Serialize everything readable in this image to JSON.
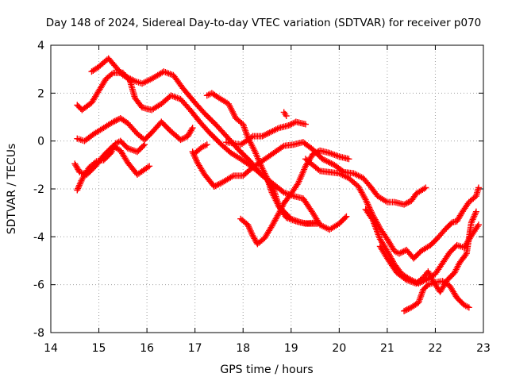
{
  "chart_data": {
    "type": "scatter",
    "title": "Day 148 of 2024, Sidereal Day-to-day VTEC variation (SDTVAR) for receiver p070",
    "xlabel": "GPS time / hours",
    "ylabel": "SDTVAR / TECUs",
    "xlim": [
      14,
      23
    ],
    "ylim": [
      -8,
      4
    ],
    "xticks": [
      "14",
      "15",
      "16",
      "17",
      "18",
      "19",
      "20",
      "21",
      "22",
      "23"
    ],
    "yticks": [
      "-8",
      "-6",
      "-4",
      "-2",
      "0",
      "2",
      "4"
    ],
    "grid": true,
    "marker": "plus",
    "color": "#ff0000",
    "series": [
      {
        "name": "track-1",
        "points": [
          [
            14.85,
            2.9
          ],
          [
            15.0,
            3.1
          ],
          [
            15.2,
            3.45
          ],
          [
            15.35,
            3.1
          ],
          [
            15.5,
            2.75
          ],
          [
            15.75,
            2.5
          ],
          [
            15.9,
            2.4
          ],
          [
            16.1,
            2.6
          ],
          [
            16.35,
            2.9
          ],
          [
            16.55,
            2.75
          ],
          [
            16.75,
            2.2
          ],
          [
            17.0,
            1.6
          ],
          [
            17.2,
            1.15
          ],
          [
            17.45,
            0.65
          ],
          [
            17.7,
            0.1
          ],
          [
            17.9,
            -0.35
          ],
          [
            18.15,
            -0.85
          ],
          [
            18.35,
            -1.35
          ],
          [
            18.6,
            -1.75
          ],
          [
            18.85,
            -2.15
          ],
          [
            19.05,
            -2.3
          ],
          [
            19.25,
            -2.4
          ],
          [
            19.45,
            -3.0
          ],
          [
            19.6,
            -3.5
          ],
          [
            19.8,
            -3.7
          ],
          [
            20.0,
            -3.45
          ],
          [
            20.15,
            -3.15
          ]
        ]
      },
      {
        "name": "track-2",
        "points": [
          [
            14.55,
            1.5
          ],
          [
            14.65,
            1.3
          ],
          [
            14.85,
            1.6
          ],
          [
            15.0,
            2.1
          ],
          [
            15.15,
            2.6
          ],
          [
            15.3,
            2.85
          ],
          [
            15.5,
            2.85
          ],
          [
            15.65,
            2.5
          ],
          [
            15.75,
            1.8
          ],
          [
            15.9,
            1.4
          ],
          [
            16.1,
            1.3
          ],
          [
            16.3,
            1.55
          ],
          [
            16.5,
            1.9
          ],
          [
            16.7,
            1.75
          ],
          [
            16.9,
            1.3
          ],
          [
            17.1,
            0.8
          ],
          [
            17.3,
            0.35
          ],
          [
            17.55,
            -0.15
          ],
          [
            17.75,
            -0.5
          ],
          [
            17.95,
            -0.75
          ],
          [
            18.1,
            -0.95
          ],
          [
            18.3,
            -1.25
          ],
          [
            18.5,
            -1.6
          ],
          [
            18.65,
            -2.1
          ],
          [
            18.75,
            -2.75
          ],
          [
            18.9,
            -3.2
          ],
          [
            19.1,
            -3.35
          ],
          [
            19.3,
            -3.45
          ],
          [
            19.55,
            -3.4
          ]
        ]
      },
      {
        "name": "track-3",
        "points": [
          [
            14.55,
            0.1
          ],
          [
            14.7,
            0.0
          ],
          [
            14.9,
            0.3
          ],
          [
            15.1,
            0.55
          ],
          [
            15.3,
            0.8
          ],
          [
            15.45,
            0.95
          ],
          [
            15.6,
            0.75
          ],
          [
            15.8,
            0.3
          ],
          [
            15.95,
            0.05
          ],
          [
            16.1,
            0.35
          ],
          [
            16.3,
            0.8
          ],
          [
            16.5,
            0.4
          ],
          [
            16.7,
            0.05
          ],
          [
            16.85,
            0.2
          ],
          [
            16.95,
            0.55
          ]
        ]
      },
      {
        "name": "track-4",
        "points": [
          [
            14.5,
            -0.95
          ],
          [
            14.6,
            -1.3
          ],
          [
            14.75,
            -1.4
          ],
          [
            14.95,
            -1.0
          ],
          [
            15.1,
            -0.6
          ],
          [
            15.3,
            -0.2
          ],
          [
            15.45,
            -0.4
          ],
          [
            15.6,
            -0.9
          ],
          [
            15.8,
            -1.4
          ],
          [
            16.05,
            -1.05
          ]
        ]
      },
      {
        "name": "track-5",
        "points": [
          [
            14.55,
            -2.05
          ],
          [
            14.65,
            -1.6
          ],
          [
            14.8,
            -1.1
          ],
          [
            14.95,
            -0.85
          ],
          [
            15.1,
            -0.8
          ],
          [
            15.25,
            -0.5
          ],
          [
            15.35,
            -0.1
          ],
          [
            15.45,
            0.0
          ],
          [
            15.6,
            -0.3
          ],
          [
            15.8,
            -0.45
          ],
          [
            15.95,
            -0.15
          ]
        ]
      },
      {
        "name": "track-6",
        "points": [
          [
            16.95,
            -0.45
          ],
          [
            17.05,
            -0.9
          ],
          [
            17.2,
            -1.4
          ],
          [
            17.4,
            -1.9
          ],
          [
            17.55,
            -1.75
          ],
          [
            17.8,
            -1.45
          ],
          [
            18.0,
            -1.45
          ],
          [
            18.2,
            -1.1
          ],
          [
            18.35,
            -0.9
          ],
          [
            18.6,
            -0.55
          ],
          [
            18.85,
            -0.2
          ],
          [
            19.05,
            -0.15
          ],
          [
            19.25,
            -0.05
          ],
          [
            19.45,
            -0.35
          ],
          [
            19.65,
            -0.75
          ],
          [
            19.9,
            -1.0
          ],
          [
            20.1,
            -1.3
          ],
          [
            20.3,
            -1.35
          ],
          [
            20.5,
            -1.55
          ],
          [
            20.65,
            -1.9
          ],
          [
            20.8,
            -2.3
          ],
          [
            21.0,
            -2.55
          ],
          [
            21.15,
            -2.55
          ],
          [
            21.35,
            -2.65
          ],
          [
            21.5,
            -2.5
          ],
          [
            21.6,
            -2.2
          ],
          [
            21.8,
            -1.95
          ]
        ]
      },
      {
        "name": "track-7",
        "points": [
          [
            17.0,
            -0.5
          ],
          [
            17.15,
            -0.25
          ],
          [
            17.25,
            -0.15
          ]
        ]
      },
      {
        "name": "track-8",
        "points": [
          [
            17.25,
            1.9
          ],
          [
            17.35,
            2.0
          ],
          [
            17.5,
            1.8
          ],
          [
            17.7,
            1.55
          ],
          [
            17.85,
            0.95
          ],
          [
            18.0,
            0.7
          ],
          [
            18.1,
            0.15
          ],
          [
            18.25,
            -0.45
          ],
          [
            18.4,
            -1.15
          ],
          [
            18.5,
            -1.55
          ],
          [
            18.6,
            -2.15
          ],
          [
            18.75,
            -2.75
          ],
          [
            18.9,
            -3.05
          ],
          [
            19.0,
            -3.25
          ],
          [
            19.2,
            -3.4
          ],
          [
            19.35,
            -3.45
          ],
          [
            19.55,
            -3.45
          ]
        ]
      },
      {
        "name": "track-9",
        "points": [
          [
            17.65,
            -0.05
          ],
          [
            17.8,
            -0.1
          ],
          [
            17.95,
            -0.15
          ],
          [
            18.1,
            0.05
          ],
          [
            18.2,
            0.2
          ],
          [
            18.4,
            0.2
          ],
          [
            18.55,
            0.35
          ],
          [
            18.75,
            0.55
          ],
          [
            18.95,
            0.65
          ],
          [
            19.1,
            0.8
          ],
          [
            19.3,
            0.7
          ]
        ]
      },
      {
        "name": "track-10",
        "points": [
          [
            17.95,
            -3.25
          ],
          [
            18.1,
            -3.5
          ],
          [
            18.2,
            -3.95
          ],
          [
            18.3,
            -4.3
          ],
          [
            18.45,
            -4.05
          ],
          [
            18.6,
            -3.55
          ],
          [
            18.75,
            -3.0
          ],
          [
            18.85,
            -2.6
          ],
          [
            19.0,
            -2.2
          ],
          [
            19.15,
            -1.75
          ],
          [
            19.3,
            -1.05
          ],
          [
            19.45,
            -0.55
          ],
          [
            19.6,
            -0.4
          ],
          [
            19.8,
            -0.5
          ],
          [
            20.0,
            -0.65
          ],
          [
            20.2,
            -0.75
          ]
        ]
      },
      {
        "name": "track-11",
        "points": [
          [
            18.85,
            1.2
          ],
          [
            18.9,
            1.05
          ]
        ]
      },
      {
        "name": "track-12",
        "points": [
          [
            19.3,
            -0.75
          ],
          [
            19.45,
            -1.0
          ],
          [
            19.6,
            -1.25
          ],
          [
            19.8,
            -1.3
          ],
          [
            20.0,
            -1.35
          ],
          [
            20.2,
            -1.55
          ],
          [
            20.4,
            -1.9
          ],
          [
            20.55,
            -2.45
          ],
          [
            20.7,
            -3.1
          ],
          [
            20.85,
            -3.65
          ],
          [
            21.0,
            -4.1
          ],
          [
            21.15,
            -4.6
          ],
          [
            21.25,
            -4.7
          ],
          [
            21.4,
            -4.55
          ],
          [
            21.55,
            -4.9
          ],
          [
            21.7,
            -4.6
          ],
          [
            21.9,
            -4.35
          ],
          [
            22.05,
            -4.05
          ],
          [
            22.2,
            -3.7
          ],
          [
            22.35,
            -3.4
          ],
          [
            22.45,
            -3.35
          ],
          [
            22.55,
            -3.0
          ],
          [
            22.7,
            -2.55
          ],
          [
            22.85,
            -2.3
          ],
          [
            22.9,
            -1.95
          ]
        ]
      },
      {
        "name": "track-13",
        "points": [
          [
            20.55,
            -2.85
          ],
          [
            20.7,
            -3.3
          ],
          [
            20.85,
            -4.1
          ],
          [
            21.0,
            -4.6
          ],
          [
            21.15,
            -5.15
          ],
          [
            21.3,
            -5.55
          ],
          [
            21.45,
            -5.75
          ],
          [
            21.65,
            -5.95
          ],
          [
            21.85,
            -5.75
          ],
          [
            22.0,
            -5.55
          ],
          [
            22.15,
            -5.1
          ],
          [
            22.3,
            -4.65
          ],
          [
            22.45,
            -4.35
          ],
          [
            22.6,
            -4.45
          ],
          [
            22.75,
            -3.95
          ],
          [
            22.9,
            -3.5
          ]
        ]
      },
      {
        "name": "track-14",
        "points": [
          [
            20.85,
            -4.4
          ],
          [
            21.0,
            -4.9
          ],
          [
            21.2,
            -5.5
          ],
          [
            21.4,
            -5.8
          ],
          [
            21.6,
            -5.95
          ],
          [
            21.75,
            -5.7
          ],
          [
            21.85,
            -5.45
          ],
          [
            21.95,
            -5.85
          ],
          [
            22.1,
            -6.3
          ],
          [
            22.25,
            -5.8
          ],
          [
            22.4,
            -5.5
          ],
          [
            22.5,
            -5.1
          ],
          [
            22.65,
            -4.7
          ],
          [
            22.75,
            -3.4
          ],
          [
            22.85,
            -2.95
          ]
        ]
      },
      {
        "name": "track-15",
        "points": [
          [
            21.35,
            -7.1
          ],
          [
            21.5,
            -6.95
          ],
          [
            21.65,
            -6.75
          ],
          [
            21.75,
            -6.2
          ],
          [
            21.85,
            -6.0
          ],
          [
            22.0,
            -5.9
          ],
          [
            22.15,
            -5.85
          ],
          [
            22.3,
            -6.05
          ],
          [
            22.45,
            -6.55
          ],
          [
            22.6,
            -6.85
          ],
          [
            22.7,
            -6.95
          ]
        ]
      }
    ]
  }
}
